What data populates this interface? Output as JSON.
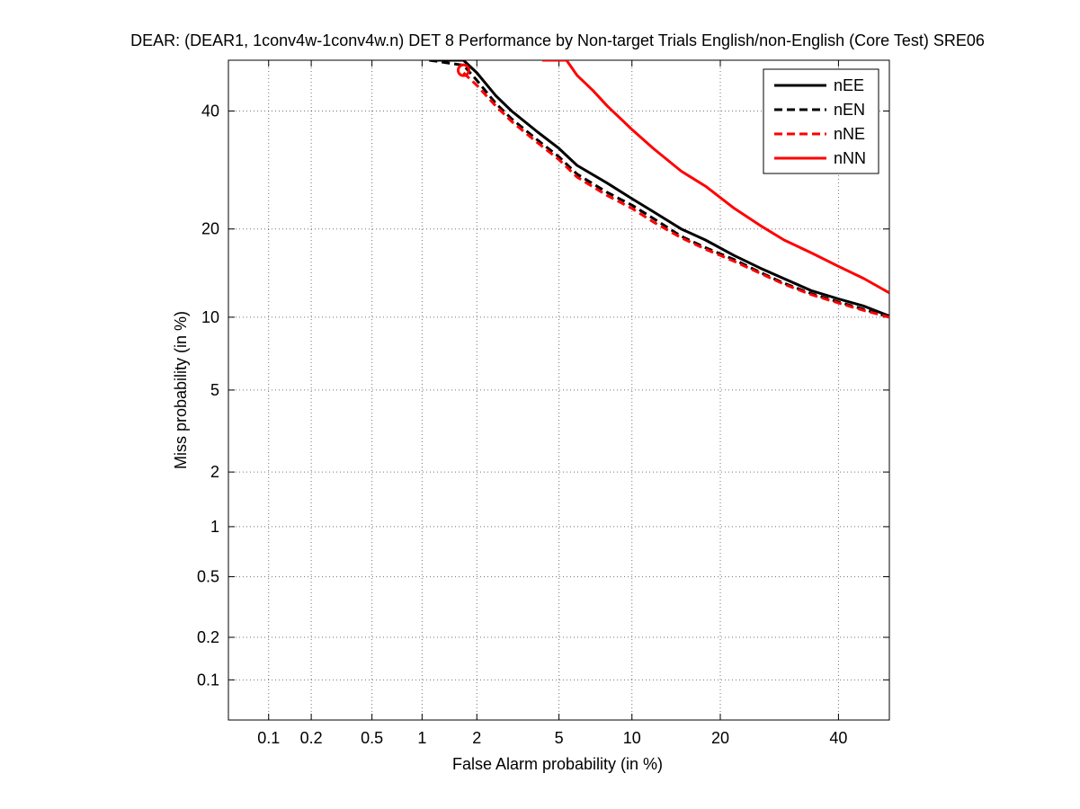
{
  "chart_data": {
    "type": "line",
    "subtype": "DET curve (normal deviate scale)",
    "title": "DEAR: (DEAR1, 1conv4w-1conv4w.n) DET 8 Performance by Non-target Trials English/non-English (Core Test) SRE06",
    "xlabel": "False Alarm probability (in %)",
    "ylabel": "Miss probability (in %)",
    "xlim": [
      0.05,
      50
    ],
    "ylim": [
      0.05,
      50
    ],
    "x_ticks": [
      0.1,
      0.2,
      0.5,
      1,
      2,
      5,
      10,
      20,
      40
    ],
    "x_tick_labels": [
      "0.1",
      "0.2",
      "0.5",
      "1",
      "2",
      "5",
      "10",
      "20",
      "40"
    ],
    "y_ticks": [
      0.1,
      0.2,
      0.5,
      1,
      2,
      5,
      10,
      20,
      40
    ],
    "y_tick_labels": [
      "0.1",
      "0.2",
      "0.5",
      "1",
      "2",
      "5",
      "10",
      "20",
      "40"
    ],
    "grid": true,
    "legend_position": "top-right",
    "series": [
      {
        "name": "nEE",
        "color": "#000000",
        "style": "solid",
        "x": [
          1.1,
          1.7,
          2.0,
          2.5,
          3.0,
          4.0,
          5.0,
          6.0,
          8.0,
          10.0,
          12.0,
          15.0,
          18.0,
          22.0,
          26.0,
          30.0,
          35.0,
          40.0,
          45.0,
          50.0
        ],
        "y": [
          50.0,
          50.0,
          47.5,
          43.0,
          40.0,
          36.0,
          33.0,
          30.0,
          27.0,
          24.5,
          22.5,
          20.0,
          18.5,
          16.5,
          15.0,
          13.8,
          12.5,
          11.7,
          11.0,
          10.1
        ]
      },
      {
        "name": "nEN",
        "color": "#000000",
        "style": "dashed",
        "x": [
          1.1,
          1.7,
          2.0,
          2.5,
          3.0,
          4.0,
          5.0,
          6.0,
          8.0,
          10.0,
          12.0,
          15.0,
          18.0,
          22.0,
          26.0,
          30.0,
          35.0,
          40.0,
          45.0,
          50.0
        ],
        "y": [
          50.0,
          49.0,
          46.0,
          41.5,
          38.5,
          34.5,
          31.5,
          28.5,
          25.5,
          23.5,
          21.5,
          19.0,
          17.5,
          16.0,
          14.5,
          13.3,
          12.2,
          11.4,
          10.7,
          10.0
        ]
      },
      {
        "name": "nNE",
        "color": "#ff0000",
        "style": "dashed",
        "x": [
          1.7,
          2.0,
          2.5,
          3.0,
          4.0,
          5.0,
          6.0,
          8.0,
          10.0,
          12.0,
          15.0,
          18.0,
          22.0,
          26.0,
          30.0,
          35.0,
          40.0,
          45.0,
          50.0
        ],
        "y": [
          47.5,
          45.0,
          41.0,
          38.0,
          34.0,
          31.0,
          28.0,
          25.0,
          23.0,
          21.0,
          18.8,
          17.3,
          15.8,
          14.4,
          13.2,
          12.1,
          11.3,
          10.6,
          10.0
        ]
      },
      {
        "name": "nNN",
        "color": "#ff0000",
        "style": "solid",
        "x": [
          4.2,
          5.4,
          6.0,
          7.0,
          8.0,
          10.0,
          12.0,
          15.0,
          18.0,
          22.0,
          26.0,
          30.0,
          35.0,
          40.0,
          45.0,
          50.0
        ],
        "y": [
          50.0,
          50.0,
          47.0,
          44.0,
          41.0,
          36.5,
          33.0,
          29.0,
          26.5,
          23.0,
          20.5,
          18.5,
          16.8,
          15.2,
          13.8,
          12.3
        ]
      }
    ],
    "markers": [
      {
        "series": "nNE",
        "shape": "circle",
        "color": "#ff0000",
        "x": 1.7,
        "y": 48.0
      }
    ]
  }
}
